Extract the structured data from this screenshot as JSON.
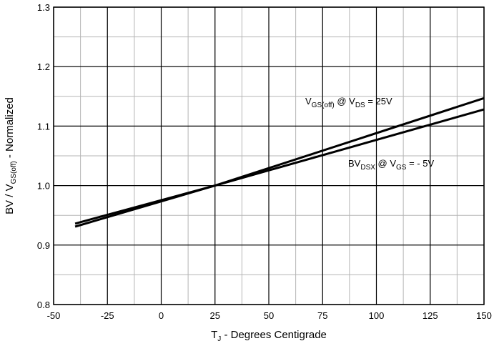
{
  "chart_data": {
    "type": "line",
    "title": "",
    "xlabel": {
      "main": "T",
      "sub": "J",
      "rest": " - Degrees Centigrade"
    },
    "ylabel": {
      "a": "BV / V",
      "sub": "GS(off)",
      "b": " - Normalized"
    },
    "xlim": [
      -50,
      150
    ],
    "ylim": [
      0.8,
      1.3
    ],
    "x_ticks": [
      -50,
      -25,
      0,
      25,
      50,
      75,
      100,
      125,
      150
    ],
    "y_ticks": [
      "0.8",
      "0.9",
      "1.0",
      "1.1",
      "1.2",
      "1.3"
    ],
    "grid": true,
    "series": [
      {
        "x": [
          -40,
          25,
          150
        ],
        "y": [
          0.931,
          1.0,
          1.147
        ]
      },
      {
        "x": [
          -40,
          25,
          150
        ],
        "y": [
          0.936,
          1.0,
          1.128
        ]
      }
    ],
    "annotations": [
      {
        "parts": [
          "V",
          "GS(off)",
          " @ V",
          "DS",
          " = 25V"
        ]
      },
      {
        "parts": [
          "BV",
          "DSX",
          " @ V",
          "GS",
          " = - 5V"
        ]
      }
    ]
  }
}
